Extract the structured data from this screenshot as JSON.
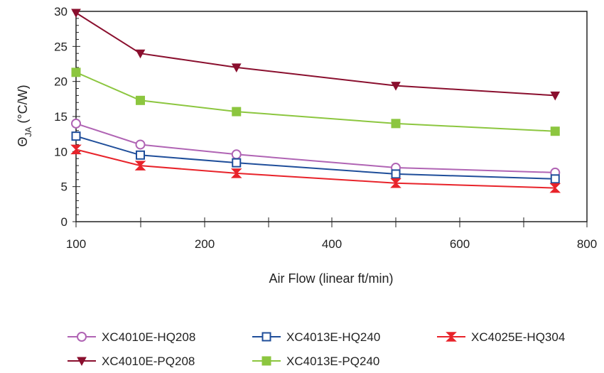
{
  "chart_data": {
    "type": "line",
    "xlabel": "Air Flow (linear ft/min)",
    "ylabel_main": "Θ",
    "ylabel_sub": "JA",
    "ylabel_unit": " (°C/W)",
    "x_tick_labels": [
      "100",
      "200",
      "400",
      "600",
      "800"
    ],
    "y_ticks": [
      0,
      5,
      10,
      15,
      20,
      25,
      30
    ],
    "ylim": [
      0,
      30
    ],
    "grid": false,
    "legend_position": "bottom",
    "series": [
      {
        "name": "XC4010E-HQ208",
        "color": "#b064b4",
        "marker": "circle",
        "values": [
          14.0,
          11.0,
          9.6,
          7.7,
          7.0
        ]
      },
      {
        "name": "XC4013E-HQ240",
        "color": "#1f4e9a",
        "marker": "square",
        "values": [
          12.2,
          9.5,
          8.4,
          6.8,
          6.1
        ]
      },
      {
        "name": "XC4025E-HQ304",
        "color": "#e8232a",
        "marker": "bowtie",
        "values": [
          10.3,
          8.0,
          6.9,
          5.5,
          4.8
        ]
      },
      {
        "name": "XC4010E-PQ208",
        "color": "#8a0f2e",
        "marker": "triangle-down",
        "values": [
          29.8,
          24.0,
          22.0,
          19.4,
          18.0
        ]
      },
      {
        "name": "XC4013E-PQ240",
        "color": "#8cc63f",
        "marker": "filled-square",
        "values": [
          21.3,
          17.3,
          15.7,
          14.0,
          12.9
        ]
      }
    ],
    "x_points": [
      100,
      150,
      250,
      500,
      750
    ]
  }
}
